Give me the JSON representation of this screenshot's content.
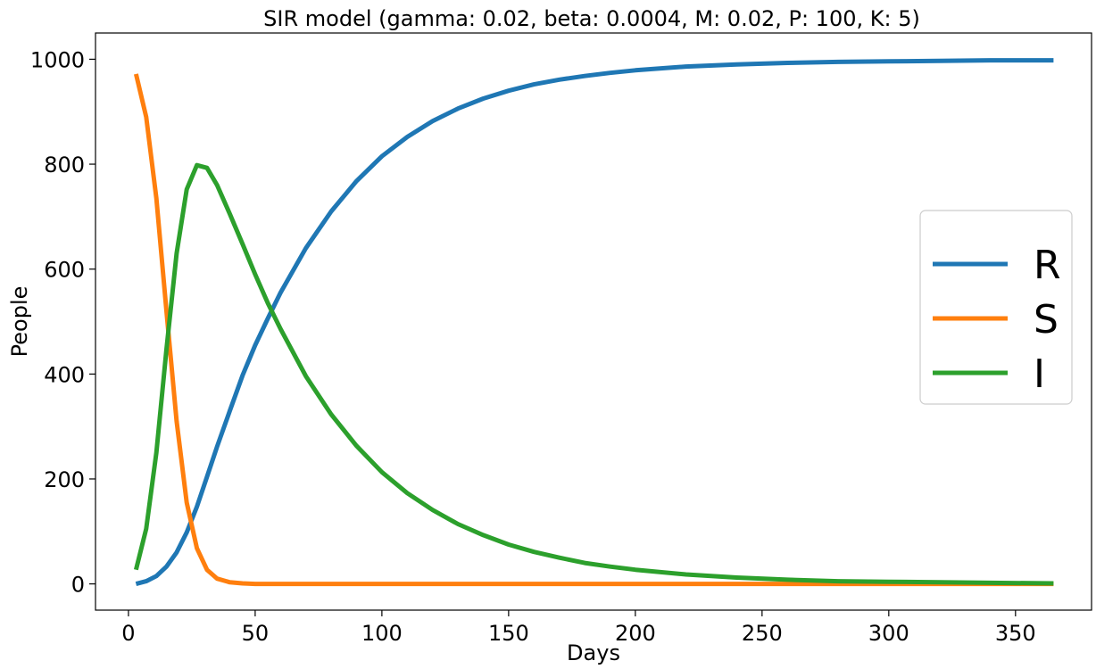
{
  "chart_data": {
    "type": "line",
    "title": "SIR model (gamma: 0.02, beta: 0.0004, M: 0.02, P: 100, K: 5)",
    "xlabel": "Days",
    "ylabel": "People",
    "xlim": [
      -13,
      380
    ],
    "ylim": [
      -50,
      1050
    ],
    "xticks": [
      0,
      50,
      100,
      150,
      200,
      250,
      300,
      350
    ],
    "yticks": [
      0,
      200,
      400,
      600,
      800,
      1000
    ],
    "grid": false,
    "legend_position": "center-right",
    "series": [
      {
        "name": "R",
        "color": "#1f77b4",
        "x": [
          3,
          7,
          11,
          15,
          19,
          23,
          27,
          31,
          35,
          40,
          45,
          50,
          55,
          60,
          70,
          80,
          90,
          100,
          110,
          120,
          130,
          140,
          150,
          160,
          170,
          180,
          190,
          200,
          220,
          240,
          260,
          280,
          300,
          320,
          340,
          365
        ],
        "y": [
          0,
          5,
          15,
          33,
          60,
          98,
          147,
          204,
          262,
          330,
          397,
          455,
          506,
          555,
          640,
          710,
          768,
          815,
          852,
          882,
          906,
          925,
          940,
          952,
          961,
          968,
          974,
          979,
          986,
          990,
          993,
          995,
          996,
          997,
          998,
          998
        ]
      },
      {
        "name": "S",
        "color": "#ff7f0e",
        "x": [
          3,
          7,
          11,
          15,
          19,
          23,
          27,
          31,
          35,
          40,
          45,
          50,
          60,
          80,
          100,
          150,
          200,
          250,
          300,
          365
        ],
        "y": [
          972,
          890,
          735,
          520,
          310,
          155,
          68,
          27,
          10,
          3,
          1,
          0,
          0,
          0,
          0,
          0,
          0,
          0,
          0,
          0
        ]
      },
      {
        "name": "I",
        "color": "#2ca02c",
        "x": [
          3,
          7,
          11,
          15,
          19,
          23,
          27,
          31,
          35,
          40,
          45,
          50,
          55,
          60,
          70,
          80,
          90,
          100,
          110,
          120,
          130,
          140,
          150,
          160,
          170,
          180,
          190,
          200,
          220,
          240,
          260,
          280,
          300,
          320,
          340,
          365
        ],
        "y": [
          27,
          105,
          250,
          447,
          630,
          752,
          798,
          793,
          760,
          705,
          648,
          590,
          535,
          486,
          396,
          323,
          263,
          213,
          173,
          141,
          114,
          93,
          75,
          61,
          50,
          40,
          33,
          27,
          18,
          12,
          8,
          5,
          4,
          3,
          2,
          1
        ]
      }
    ]
  }
}
